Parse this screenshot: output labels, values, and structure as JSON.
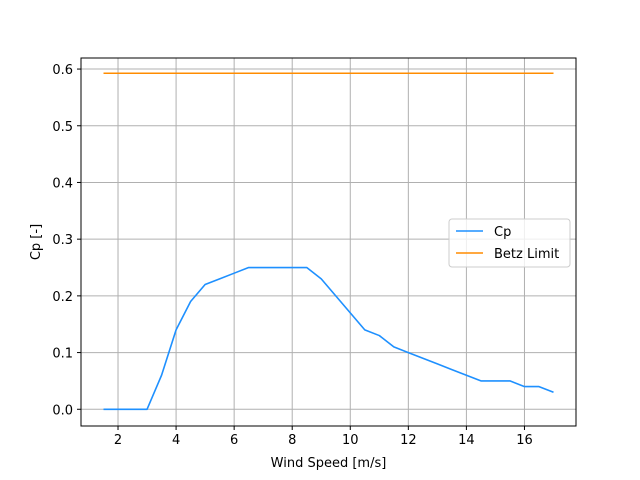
{
  "chart_data": {
    "type": "line",
    "title": "",
    "xlabel": "Wind Speed [m/s]",
    "ylabel": "Cp [-]",
    "xlim": [
      0.725,
      17.775
    ],
    "ylim": [
      -0.0295,
      0.6195
    ],
    "xticks": [
      2,
      4,
      6,
      8,
      10,
      12,
      14,
      16
    ],
    "yticks": [
      0.0,
      0.1,
      0.2,
      0.3,
      0.4,
      0.5,
      0.6
    ],
    "xtick_labels": [
      "2",
      "4",
      "6",
      "8",
      "10",
      "12",
      "14",
      "16"
    ],
    "ytick_labels": [
      "0.0",
      "0.1",
      "0.2",
      "0.3",
      "0.4",
      "0.5",
      "0.6"
    ],
    "grid": true,
    "legend_position": "center-right",
    "series": [
      {
        "name": "Cp",
        "color": "#1e90ff",
        "x": [
          1.5,
          2.0,
          2.5,
          3.0,
          3.5,
          4.0,
          4.5,
          5.0,
          5.5,
          6.0,
          6.5,
          7.0,
          7.5,
          8.0,
          8.5,
          9.0,
          9.5,
          10.0,
          10.5,
          11.0,
          11.5,
          12.0,
          12.5,
          13.0,
          13.5,
          14.0,
          14.5,
          15.0,
          15.5,
          16.0,
          16.5,
          17.0
        ],
        "y": [
          0.0,
          0.0,
          0.0,
          0.0,
          0.06,
          0.14,
          0.19,
          0.22,
          0.23,
          0.24,
          0.25,
          0.25,
          0.25,
          0.25,
          0.25,
          0.23,
          0.2,
          0.17,
          0.14,
          0.13,
          0.11,
          0.1,
          0.09,
          0.08,
          0.07,
          0.06,
          0.05,
          0.05,
          0.05,
          0.04,
          0.04,
          0.03
        ]
      },
      {
        "name": "Betz Limit",
        "color": "#ff8c00",
        "x": [
          1.5,
          17.0
        ],
        "y": [
          0.5926,
          0.5926
        ]
      }
    ]
  }
}
